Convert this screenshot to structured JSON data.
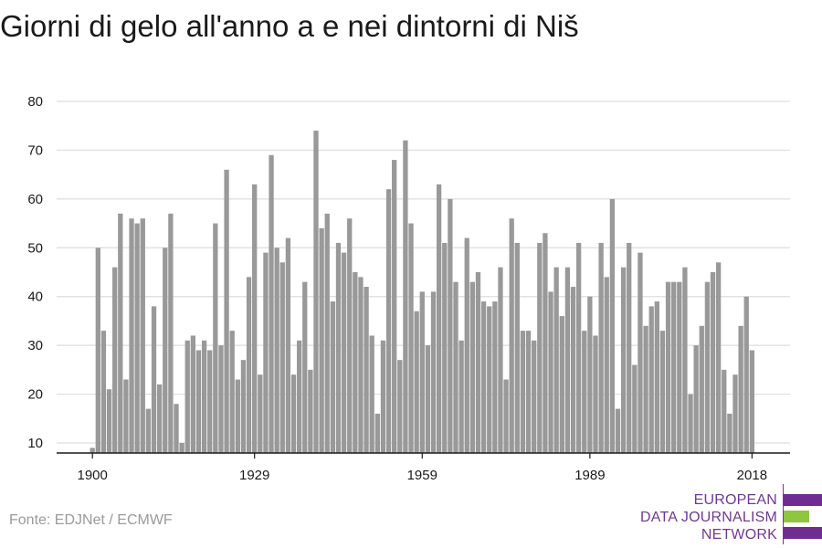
{
  "title": "Giorni di gelo all'anno a e nei dintorni di Niš",
  "source": "Fonte: EDJNet / ECMWF",
  "logo": {
    "lines": [
      "EUROPEAN",
      "DATA JOURNALISM",
      "NETWORK"
    ],
    "colors": [
      "#6f2c91",
      "#8dc63f",
      "#6f2c91"
    ]
  },
  "colors": {
    "bar": "#999999",
    "grid": "#dddddd",
    "axis": "#1a1a1a"
  },
  "chart_data": {
    "type": "bar",
    "title": "Giorni di gelo all'anno a e nei dintorni di Niš",
    "xlabel": "",
    "ylabel": "",
    "x_start": 1900,
    "x_end": 2018,
    "x_ticks": [
      1900,
      1929,
      1959,
      1989,
      2018
    ],
    "y_ticks": [
      10,
      20,
      30,
      40,
      50,
      60,
      70,
      80
    ],
    "ylim": [
      10,
      80
    ],
    "grid": true,
    "legend": "none",
    "values": [
      9,
      50,
      33,
      21,
      46,
      57,
      23,
      56,
      55,
      56,
      17,
      38,
      22,
      50,
      57,
      18,
      10,
      31,
      32,
      29,
      31,
      29,
      55,
      30,
      66,
      33,
      23,
      27,
      44,
      63,
      24,
      49,
      69,
      50,
      47,
      52,
      24,
      31,
      43,
      25,
      74,
      54,
      57,
      39,
      51,
      49,
      56,
      45,
      44,
      42,
      32,
      16,
      31,
      62,
      68,
      27,
      72,
      55,
      37,
      41,
      30,
      41,
      63,
      51,
      60,
      43,
      31,
      52,
      43,
      45,
      39,
      38,
      39,
      46,
      23,
      56,
      51,
      33,
      33,
      31,
      51,
      53,
      41,
      46,
      36,
      46,
      42,
      51,
      33,
      40,
      32,
      51,
      44,
      60,
      17,
      46,
      51,
      26,
      49,
      34,
      38,
      39,
      33,
      43,
      43,
      43,
      46,
      20,
      30,
      34,
      43,
      45,
      47,
      25,
      16,
      24,
      34,
      40,
      29
    ]
  }
}
